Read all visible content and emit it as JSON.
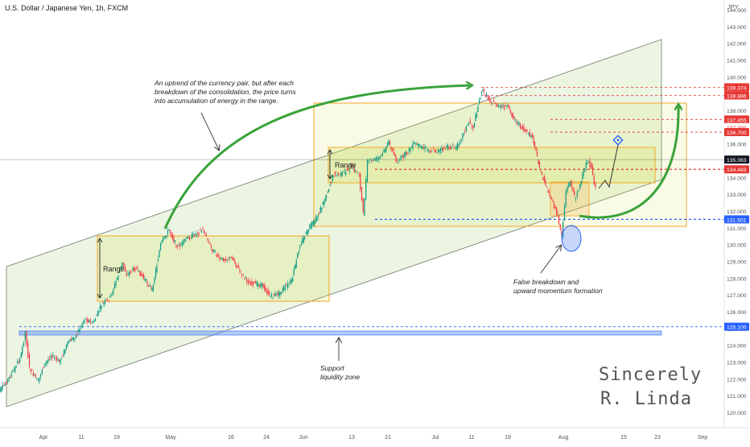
{
  "header": {
    "symbol_title": "U.S. Dollar / Japanese Yen, 1h, FXCM",
    "currency": "JPY"
  },
  "chart_data": {
    "type": "line",
    "title": "U.S. Dollar / Japanese Yen, 1h, FXCM",
    "xlabel": "",
    "ylabel": "JPY",
    "ylim": [
      119.5,
      145.5
    ],
    "grid": false,
    "x_ticks": [
      "Apr",
      "11",
      "19",
      "May",
      "16",
      "24",
      "Jun",
      "13",
      "21",
      "Jul",
      "11",
      "19",
      "Aug",
      "15",
      "23",
      "Sep"
    ],
    "y_ticks": [
      "120.000",
      "121.000",
      "122.000",
      "123.000",
      "124.000",
      "125.000",
      "126.000",
      "127.000",
      "128.000",
      "129.000",
      "130.000",
      "131.000",
      "132.000",
      "133.000",
      "134.000",
      "135.000",
      "136.000",
      "137.000",
      "138.000",
      "139.000",
      "140.000",
      "141.000",
      "142.000",
      "143.000",
      "144.000"
    ],
    "series": [
      {
        "values": [
          {
            "x": "Mar 21",
            "y": 121.0
          },
          {
            "x": "Mar 23",
            "y": 121.6
          },
          {
            "x": "Mar 25",
            "y": 122.4
          },
          {
            "x": "Mar 27",
            "y": 123.4
          },
          {
            "x": "Mar 28",
            "y": 124.8
          },
          {
            "x": "Mar 29",
            "y": 122.6
          },
          {
            "x": "Mar 31",
            "y": 121.8
          },
          {
            "x": "Apr 1",
            "y": 122.6
          },
          {
            "x": "Apr 3",
            "y": 123.4
          },
          {
            "x": "Apr 5",
            "y": 123.0
          },
          {
            "x": "Apr 7",
            "y": 124.1
          },
          {
            "x": "Apr 9",
            "y": 124.6
          },
          {
            "x": "Apr 11",
            "y": 125.6
          },
          {
            "x": "Apr 13",
            "y": 125.3
          },
          {
            "x": "Apr 15",
            "y": 126.4
          },
          {
            "x": "Apr 17",
            "y": 126.8
          },
          {
            "x": "Apr 19",
            "y": 128.2
          },
          {
            "x": "Apr 20",
            "y": 128.9
          },
          {
            "x": "Apr 21",
            "y": 128.2
          },
          {
            "x": "Apr 23",
            "y": 128.6
          },
          {
            "x": "Apr 25",
            "y": 128.0
          },
          {
            "x": "Apr 27",
            "y": 127.3
          },
          {
            "x": "Apr 29",
            "y": 130.0
          },
          {
            "x": "May 1",
            "y": 130.9
          },
          {
            "x": "May 3",
            "y": 129.8
          },
          {
            "x": "May 5",
            "y": 130.3
          },
          {
            "x": "May 7",
            "y": 130.6
          },
          {
            "x": "May 9",
            "y": 130.9
          },
          {
            "x": "May 11",
            "y": 129.8
          },
          {
            "x": "May 13",
            "y": 129.1
          },
          {
            "x": "May 16",
            "y": 129.2
          },
          {
            "x": "May 18",
            "y": 128.3
          },
          {
            "x": "May 20",
            "y": 127.7
          },
          {
            "x": "May 23",
            "y": 127.6
          },
          {
            "x": "May 25",
            "y": 126.9
          },
          {
            "x": "May 27",
            "y": 127.1
          },
          {
            "x": "May 30",
            "y": 127.8
          },
          {
            "x": "Jun 1",
            "y": 130.0
          },
          {
            "x": "Jun 3",
            "y": 130.9
          },
          {
            "x": "Jun 5",
            "y": 131.6
          },
          {
            "x": "Jun 7",
            "y": 132.8
          },
          {
            "x": "Jun 9",
            "y": 134.2
          },
          {
            "x": "Jun 11",
            "y": 134.2
          },
          {
            "x": "Jun 13",
            "y": 134.6
          },
          {
            "x": "Jun 15",
            "y": 134.2
          },
          {
            "x": "Jun 16",
            "y": 131.8
          },
          {
            "x": "Jun 17",
            "y": 134.9
          },
          {
            "x": "Jun 20",
            "y": 135.2
          },
          {
            "x": "Jun 22",
            "y": 136.1
          },
          {
            "x": "Jun 24",
            "y": 134.9
          },
          {
            "x": "Jun 26",
            "y": 135.4
          },
          {
            "x": "Jun 28",
            "y": 136.0
          },
          {
            "x": "Jun 30",
            "y": 135.8
          },
          {
            "x": "Jul 2",
            "y": 135.6
          },
          {
            "x": "Jul 4",
            "y": 135.6
          },
          {
            "x": "Jul 6",
            "y": 135.8
          },
          {
            "x": "Jul 8",
            "y": 135.8
          },
          {
            "x": "Jul 11",
            "y": 137.3
          },
          {
            "x": "Jul 12",
            "y": 137.0
          },
          {
            "x": "Jul 14",
            "y": 139.2
          },
          {
            "x": "Jul 16",
            "y": 138.6
          },
          {
            "x": "Jul 18",
            "y": 138.2
          },
          {
            "x": "Jul 20",
            "y": 138.2
          },
          {
            "x": "Jul 22",
            "y": 137.4
          },
          {
            "x": "Jul 24",
            "y": 136.8
          },
          {
            "x": "Jul 26",
            "y": 136.4
          },
          {
            "x": "Jul 28",
            "y": 134.3
          },
          {
            "x": "Jul 30",
            "y": 133.0
          },
          {
            "x": "Aug 1",
            "y": 131.7
          },
          {
            "x": "Aug 2",
            "y": 130.5
          },
          {
            "x": "Aug 3",
            "y": 133.2
          },
          {
            "x": "Aug 4",
            "y": 133.8
          },
          {
            "x": "Aug 5",
            "y": 132.8
          },
          {
            "x": "Aug 6",
            "y": 133.3
          },
          {
            "x": "Aug 8",
            "y": 135.0
          },
          {
            "x": "Aug 9",
            "y": 134.6
          },
          {
            "x": "Aug 10",
            "y": 133.3
          }
        ]
      }
    ],
    "price_labels": [
      {
        "value": "139.374",
        "color": "#e53935"
      },
      {
        "value": "138.886",
        "color": "#e53935"
      },
      {
        "value": "137.455",
        "color": "#e53935"
      },
      {
        "value": "137.000",
        "color": "#e53935"
      },
      {
        "value": "136.700",
        "color": "#e53935"
      },
      {
        "value": "135.063",
        "color": "#131722"
      },
      {
        "value": "134.483",
        "color": "#e53935"
      },
      {
        "value": "131.501",
        "color": "#2962ff"
      },
      {
        "value": "125.100",
        "color": "#2962ff"
      }
    ],
    "annotations": {
      "range_label_1": "Range",
      "range_label_2": "Range",
      "uptrend_note": [
        "An uptrend of the currency pair, but after each",
        "breakdown of the consolidation, the price turns",
        "into accumulation of energy in the range."
      ],
      "false_breakdown_note": [
        "False breakdown and",
        "upward momentum formation"
      ],
      "support_note": [
        "Support",
        "liquidity zone"
      ],
      "signature": [
        "Sincerely",
        "R. Linda"
      ]
    },
    "colors": {
      "candle_up": "#089981",
      "candle_down": "#f23645",
      "channel_fill": "#8bc34a",
      "range_border": "#f5a623",
      "arrow_green": "#3aa33a",
      "red_level": "#e53935",
      "blue_level": "#2962ff",
      "current_price": "#131722"
    }
  }
}
